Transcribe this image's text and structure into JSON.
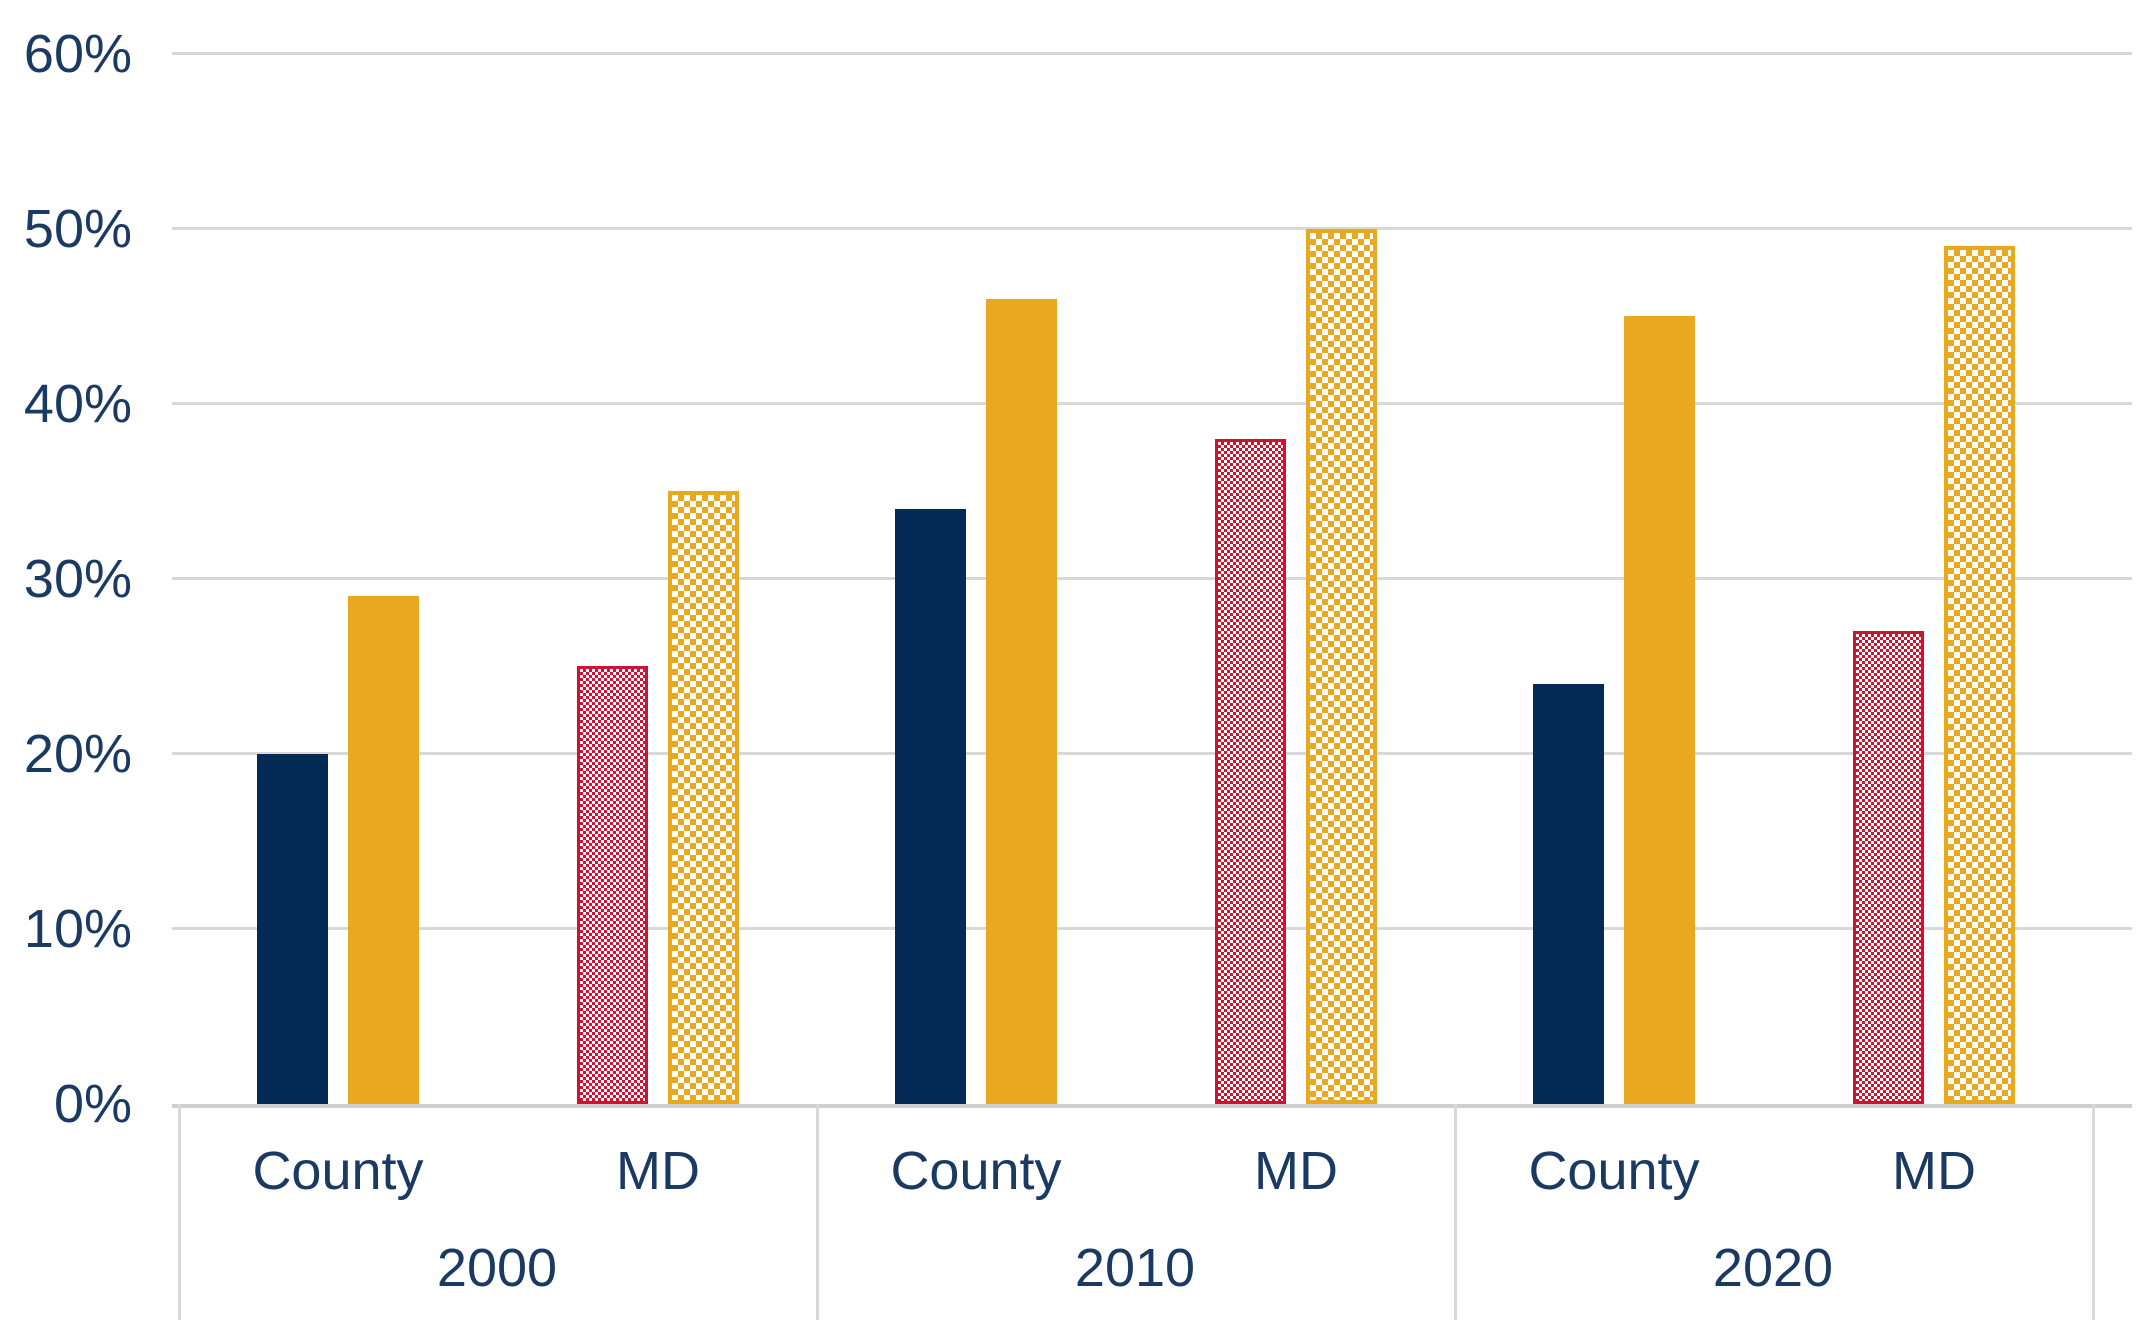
{
  "chart_data": {
    "type": "bar",
    "title": "",
    "xlabel": "",
    "ylabel": "",
    "ylim": [
      0,
      60
    ],
    "yticks": [
      "0%",
      "10%",
      "20%",
      "30%",
      "40%",
      "50%",
      "60%"
    ],
    "ytick_values": [
      0,
      10,
      20,
      30,
      40,
      50,
      60
    ],
    "grid": true,
    "legend": "none",
    "groups": [
      {
        "year": "2000",
        "subgroups": [
          {
            "label": "County",
            "bars": [
              {
                "value": 20,
                "color": "#052a55",
                "pattern": "solid"
              },
              {
                "value": 29,
                "color": "#e8a820",
                "pattern": "solid"
              }
            ]
          },
          {
            "label": "MD",
            "bars": [
              {
                "value": 25,
                "color": "#ce1230",
                "pattern": "checker-fine"
              },
              {
                "value": 35,
                "color": "#e8a820",
                "pattern": "checker-coarse"
              }
            ]
          }
        ]
      },
      {
        "year": "2010",
        "subgroups": [
          {
            "label": "County",
            "bars": [
              {
                "value": 34,
                "color": "#052a55",
                "pattern": "solid"
              },
              {
                "value": 46,
                "color": "#e8a820",
                "pattern": "solid"
              }
            ]
          },
          {
            "label": "MD",
            "bars": [
              {
                "value": 38,
                "color": "#ce1230",
                "pattern": "checker-fine"
              },
              {
                "value": 50,
                "color": "#e8a820",
                "pattern": "checker-coarse"
              }
            ]
          }
        ]
      },
      {
        "year": "2020",
        "subgroups": [
          {
            "label": "County",
            "bars": [
              {
                "value": 24,
                "color": "#052a55",
                "pattern": "solid"
              },
              {
                "value": 45,
                "color": "#e8a820",
                "pattern": "solid"
              }
            ]
          },
          {
            "label": "MD",
            "bars": [
              {
                "value": 27,
                "color": "#ce1230",
                "pattern": "checker-fine"
              },
              {
                "value": 49,
                "color": "#e8a820",
                "pattern": "checker-coarse"
              }
            ]
          }
        ]
      }
    ]
  },
  "colors": {
    "navy": "#052a55",
    "gold": "#e8a820",
    "red": "#ce1230",
    "axis_text": "#1b3a63",
    "gridline": "#d8d8d8"
  }
}
